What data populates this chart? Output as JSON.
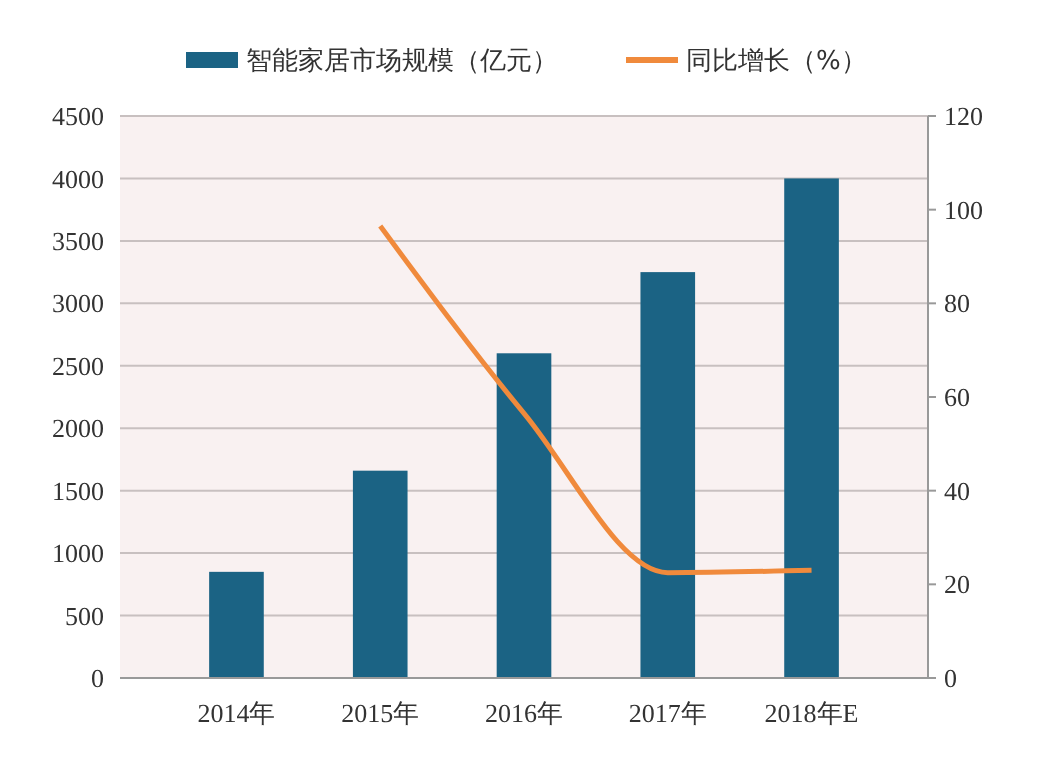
{
  "chart_data": {
    "type": "bar",
    "categories": [
      "2014年",
      "2015年",
      "2016年",
      "2017年",
      "2018年E"
    ],
    "series": [
      {
        "name": "智能家居市场规模（亿元）",
        "color": "#1b6384",
        "values": [
          850,
          1660,
          2600,
          3250,
          4000
        ]
      },
      {
        "name": "同比增长（%）",
        "type": "line",
        "axis": "y2",
        "color": "#f08a3c",
        "values": [
          null,
          96.5,
          56.5,
          22.5,
          23
        ]
      }
    ],
    "ylim": [
      0,
      4500
    ],
    "yticks": [
      0,
      500,
      1000,
      1500,
      2000,
      2500,
      3000,
      3500,
      4000,
      4500
    ],
    "y2lim": [
      0,
      120
    ],
    "y2ticks": [
      0,
      20,
      40,
      60,
      80,
      100,
      120
    ],
    "grid": "y",
    "legend": "top",
    "marker": "none"
  }
}
